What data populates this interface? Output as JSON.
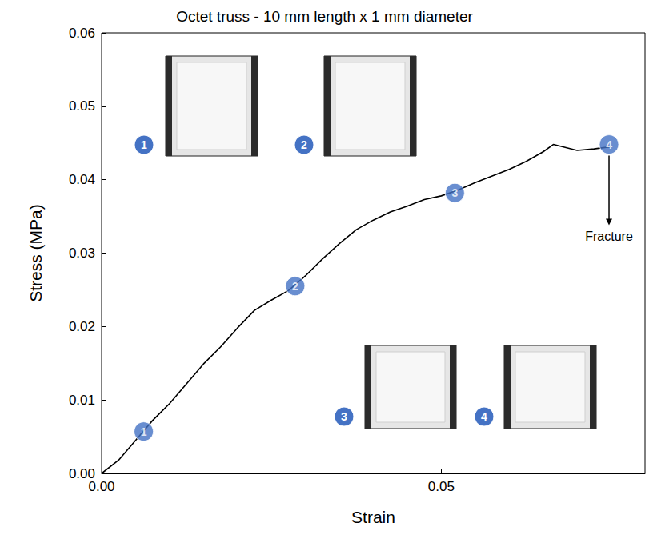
{
  "chart_data": {
    "type": "line",
    "title": "Octet truss - 10 mm length x 1 mm diameter",
    "x_label": "Strain",
    "y_label": "Stress (MPa)",
    "x": [
      0,
      0.0025,
      0.005,
      0.0075,
      0.01,
      0.0125,
      0.015,
      0.0175,
      0.02,
      0.0225,
      0.025,
      0.0275,
      0.03,
      0.0325,
      0.035,
      0.0375,
      0.04,
      0.0425,
      0.045,
      0.0475,
      0.05,
      0.0525,
      0.055,
      0.0575,
      0.06,
      0.0625,
      0.065,
      0.0665,
      0.07,
      0.0725,
      0.075
    ],
    "values": [
      0,
      0.0018,
      0.0045,
      0.0072,
      0.0095,
      0.0122,
      0.0149,
      0.0172,
      0.0198,
      0.0222,
      0.0236,
      0.0249,
      0.0269,
      0.0292,
      0.0313,
      0.0332,
      0.0345,
      0.0356,
      0.0364,
      0.0373,
      0.0378,
      0.0386,
      0.0396,
      0.0405,
      0.0414,
      0.0425,
      0.0438,
      0.0448,
      0.044,
      0.0442,
      0.0445
    ],
    "color": "#000000",
    "xlim": [
      0,
      0.08
    ],
    "xticks": [
      {
        "value": 0,
        "label": "0.00"
      },
      {
        "value": 0.05,
        "label": "0.05"
      }
    ],
    "ylim": [
      0,
      0.06
    ],
    "yticks": [
      {
        "value": 0,
        "label": "0.00"
      },
      {
        "value": 0.01,
        "label": "0.01"
      },
      {
        "value": 0.02,
        "label": "0.02"
      },
      {
        "value": 0.03,
        "label": "0.03"
      },
      {
        "value": 0.04,
        "label": "0.04"
      },
      {
        "value": 0.05,
        "label": "0.05"
      },
      {
        "value": 0.06,
        "label": "0.06"
      }
    ],
    "grid": false,
    "markers": {
      "labels": [
        "1",
        "2",
        "3",
        "4"
      ],
      "x": [
        0.0062,
        0.0285,
        0.052,
        0.0747
      ],
      "values": [
        0.0057,
        0.0255,
        0.0382,
        0.0448
      ],
      "color": "#4472c4"
    },
    "inset_labels": [
      "1",
      "2",
      "3",
      "4"
    ],
    "annotations": [
      {
        "text": "Fracture",
        "x": 0.0747,
        "y": 0.0323
      }
    ]
  }
}
